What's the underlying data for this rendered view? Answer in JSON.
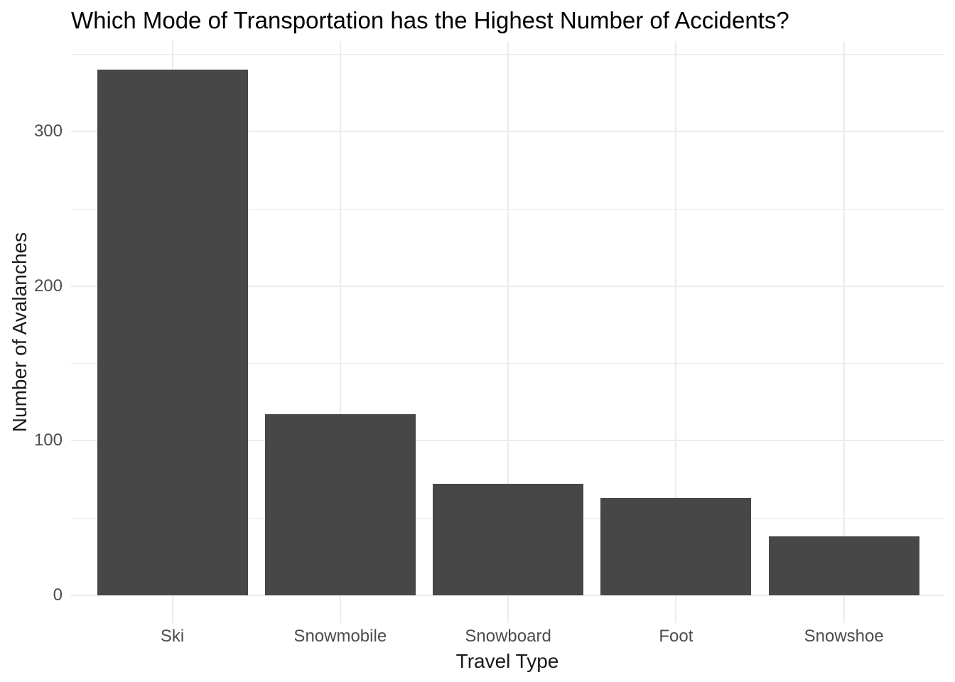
{
  "chart_data": {
    "type": "bar",
    "title": "Which Mode of Transportation has the Highest Number of Accidents?",
    "xlabel": "Travel Type",
    "ylabel": "Number of Avalanches",
    "categories": [
      "Ski",
      "Snowmobile",
      "Snowboard",
      "Foot",
      "Snowshoe"
    ],
    "values": [
      340,
      117,
      72,
      63,
      38
    ],
    "y_ticks": [
      0,
      100,
      200,
      300
    ],
    "y_minor_ticks": [
      50,
      150,
      250,
      350
    ],
    "ylim": [
      -18,
      358
    ],
    "grid": true,
    "legend": false,
    "theme": "minimal-white",
    "colors": {
      "bar_fill": "#474747",
      "gridline": "#EBEBEB",
      "tick_label": "#4D4D4D",
      "axis_title": "#1A1A1A",
      "title": "#000000",
      "background": "#FFFFFF"
    }
  }
}
